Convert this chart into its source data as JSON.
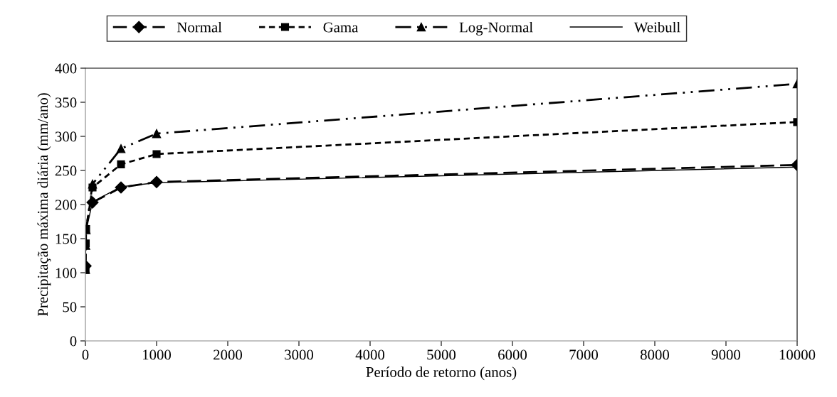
{
  "chart_data": {
    "type": "line",
    "xlabel": "Período de retorno (anos)",
    "ylabel": "Precipitação máxima diária (mm/ano)",
    "series": [
      {
        "name": "Normal",
        "color": "#000000",
        "marker": "diamond",
        "line_style": "long dashed",
        "x": [
          2,
          5,
          10,
          100,
          500,
          1000,
          10000
        ],
        "values": [
          110,
          null,
          null,
          203,
          225,
          233,
          258
        ]
      },
      {
        "name": "Gama",
        "color": "#000000",
        "marker": "square",
        "line_style": "dashed",
        "x": [
          2,
          5,
          10,
          100,
          500,
          1000,
          10000
        ],
        "values": [
          104,
          143,
          164,
          225,
          259,
          274,
          321
        ]
      },
      {
        "name": "Log-Normal",
        "color": "#000000",
        "marker": "triangle",
        "line_style": "dash-dot-dot",
        "x": [
          2,
          5,
          10,
          100,
          500,
          1000,
          10000
        ],
        "values": [
          105,
          140,
          163,
          230,
          282,
          304,
          377
        ]
      },
      {
        "name": "Weibull",
        "color": "#000000",
        "marker": "none",
        "line_style": "solid",
        "x": [
          2,
          5,
          10,
          100,
          500,
          1000,
          10000
        ],
        "values": [
          112,
          145,
          162,
          204,
          226,
          232,
          255
        ]
      }
    ],
    "xlim": [
      0,
      10000
    ],
    "xticks": [
      0,
      1000,
      2000,
      3000,
      4000,
      5000,
      6000,
      7000,
      8000,
      9000,
      10000
    ],
    "ylim": [
      0,
      400
    ],
    "yticks": [
      0,
      50,
      100,
      150,
      200,
      250,
      300,
      350,
      400
    ],
    "grid": false,
    "legend": "top"
  }
}
